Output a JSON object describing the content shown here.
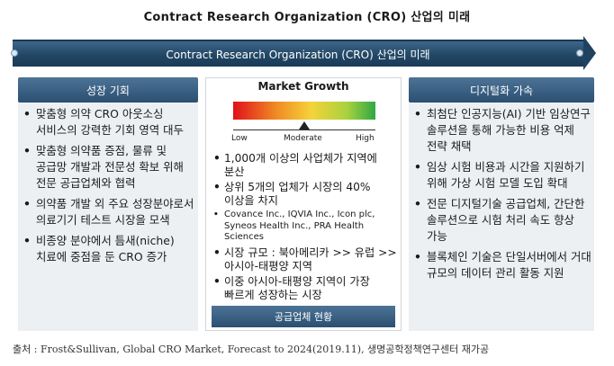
{
  "title": "Contract Research Organization (CRO) 산업의 미래",
  "banner": "Contract Research Organization (CRO) 산업의 미래",
  "left": {
    "heading": "성장 기회",
    "items": [
      "맞춤형 의약 CRO 아웃소싱 서비스의 강력한 기회 영역 대두",
      "맞춤형 의약품 증점, 물류 및 공급망 개발과 전문성 확보 위해 전문 공급업체와 협력",
      "의약품 개발 외 주요 성장분야로서 의료기기 테스트 시장을 모색",
      "비종양 분야에서 틈새(niche) 치료에 중점을 둔 CRO 증가"
    ]
  },
  "center": {
    "title": "Market Growth",
    "gauge_labels": {
      "low": "Low",
      "moderate": "Moderate",
      "high": "High"
    },
    "gauge_level": "Moderate",
    "items": [
      "1,000개 이상의 사업체가 지역에 분산",
      "상위 5개의 업체가 시장의 40% 이상을 차지"
    ],
    "sub_item": "Covance Inc., IQVIA Inc., Icon plc, Syneos Health Inc., PRA Health Sciences",
    "items2": [
      "시장 규모 : 북아메리카 >> 유럽 >> 아시아-태평양 지역",
      "이중 아시아-태평양 지역이 가장 빠르게 성장하는 시장"
    ],
    "footer": "공급업체 현황"
  },
  "right": {
    "heading": "디지털화 가속",
    "items": [
      "최첨단 인공지능(AI) 기반 임상연구 솔루션을 통해 가능한 비용 억제 전략 채택",
      "임상 시험 비용과 시간을 지원하기 위해 가상 시험 모델 도입 확대",
      "전문 디지털기술 공급업체, 간단한 솔루션으로 시험 처리 속도 향상 가능",
      "블록체인 기술은 단일서버에서 거대 규모의 데이터 관리 활동 지원"
    ]
  },
  "source": "출처 : Frost&Sullivan, Global CRO Market, Forecast to 2024(2019.11), 생명공학정책연구센터 재가공"
}
